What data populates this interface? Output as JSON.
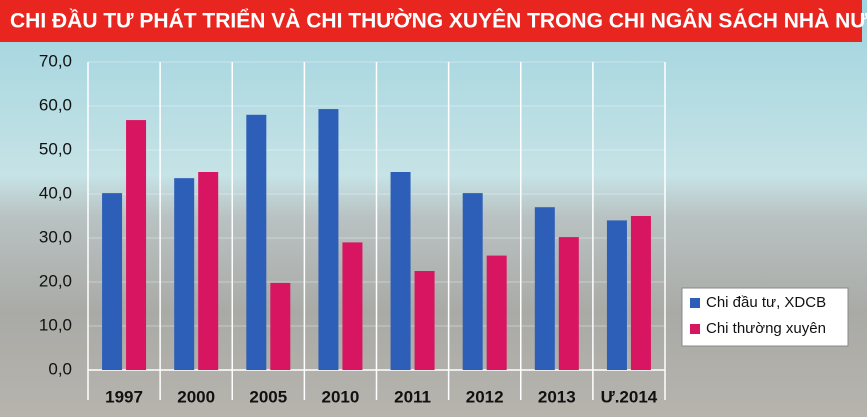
{
  "chart_data": {
    "type": "bar",
    "title": "CHI ĐẦU TƯ PHÁT TRIỂN VÀ CHI THƯỜNG XUYÊN TRONG CHI NGÂN SÁCH NHÀ NƯỚC (%)",
    "categories": [
      "1997",
      "2000",
      "2005",
      "2010",
      "2011",
      "2012",
      "2013",
      "Ư.2014"
    ],
    "series": [
      {
        "name": "Chi đầu tư, XDCB",
        "color": "#2e5fb8",
        "values": [
          40.2,
          43.6,
          58.0,
          59.3,
          45.0,
          40.2,
          37.0,
          34.0
        ]
      },
      {
        "name": "Chi thường xuyên",
        "color": "#d81560",
        "values": [
          56.8,
          45.0,
          19.8,
          29.0,
          22.5,
          26.0,
          30.2,
          35.0
        ]
      }
    ],
    "ylim": [
      0,
      70
    ],
    "yticks": [
      {
        "value": 0,
        "label": "0,0"
      },
      {
        "value": 10,
        "label": "10,0"
      },
      {
        "value": 20,
        "label": "20,0"
      },
      {
        "value": 30,
        "label": "30,0"
      },
      {
        "value": 40,
        "label": "40,0"
      },
      {
        "value": 50,
        "label": "50,0"
      },
      {
        "value": 60,
        "label": "60,0"
      },
      {
        "value": 70,
        "label": "70,0"
      }
    ],
    "grid": true,
    "legend": "lower right"
  }
}
